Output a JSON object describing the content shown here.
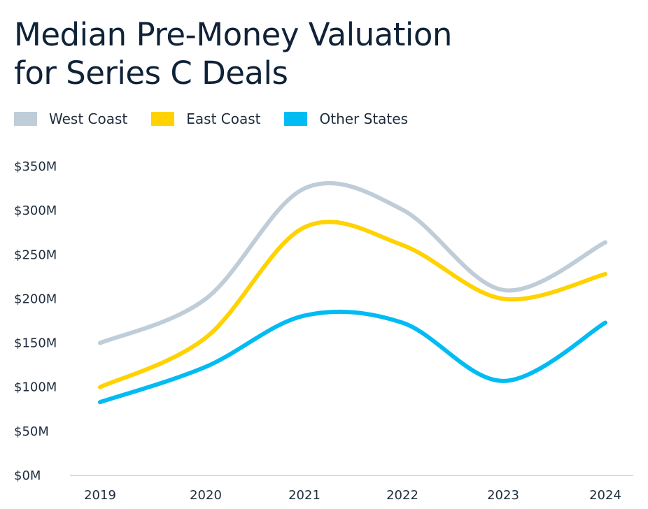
{
  "chart_data": {
    "type": "line",
    "title": "Median Pre-Money Valuation for Series C Deals",
    "title_lines": [
      "Median Pre-Money Valuation",
      "for Series C Deals"
    ],
    "categories": [
      "2019",
      "2020",
      "2021",
      "2022",
      "2023",
      "2024"
    ],
    "y_ticks": [
      "$0M",
      "$50M",
      "$100M",
      "$150M",
      "$200M",
      "$250M",
      "$300M",
      "$350M"
    ],
    "ylim": [
      0,
      350
    ],
    "y_unit": "$M",
    "grid": false,
    "legend_position": "top-left",
    "series": [
      {
        "name": "West Coast",
        "color": "#bfcdd9",
        "values": [
          150,
          200,
          325,
          301,
          210,
          264
        ]
      },
      {
        "name": "East Coast",
        "color": "#ffd200",
        "values": [
          100,
          156,
          281,
          261,
          200,
          228
        ]
      },
      {
        "name": "Other States",
        "color": "#00bcf2",
        "values": [
          83,
          123,
          181,
          173,
          107,
          173
        ]
      }
    ]
  }
}
